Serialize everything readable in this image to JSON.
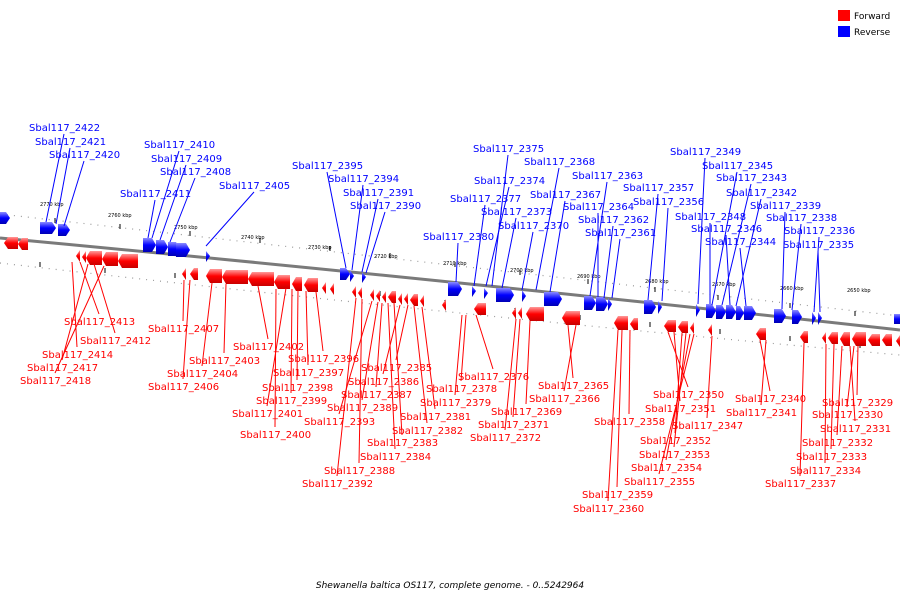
{
  "legend": [
    {
      "label": "Forward",
      "color": "#ff0000"
    },
    {
      "label": "Reverse",
      "color": "#0000ff"
    }
  ],
  "caption": "Shewanella baltica OS117, complete genome. - 0..5242964",
  "ticks": [
    "2770 kbp",
    "2760 kbp",
    "2750 kbp",
    "2740 kbp",
    "2730 kbp",
    "2720 kbp",
    "2710 kbp",
    "2700 kbp",
    "2690 kbp",
    "2680 kbp",
    "2670 kbp",
    "2660 kbp",
    "2650 kbp"
  ],
  "reverse_labels": [
    "Sbal117_2422",
    "Sbal117_2421",
    "Sbal117_2420",
    "Sbal117_2410",
    "Sbal117_2409",
    "Sbal117_2408",
    "Sbal117_2411",
    "Sbal117_2405",
    "Sbal117_2395",
    "Sbal117_2394",
    "Sbal117_2391",
    "Sbal117_2390",
    "Sbal117_2375",
    "Sbal117_2368",
    "Sbal117_2374",
    "Sbal117_2377",
    "Sbal117_2373",
    "Sbal117_2370",
    "Sbal117_2380",
    "Sbal117_2363",
    "Sbal117_2367",
    "Sbal117_2364",
    "Sbal117_2362",
    "Sbal117_2361",
    "Sbal117_2357",
    "Sbal117_2356",
    "Sbal117_2349",
    "Sbal117_2345",
    "Sbal117_2343",
    "Sbal117_2342",
    "Sbal117_2339",
    "Sbal117_2348",
    "Sbal117_2338",
    "Sbal117_2346",
    "Sbal117_2336",
    "Sbal117_2344",
    "Sbal117_2335"
  ],
  "forward_labels": [
    "Sbal117_2413",
    "Sbal117_2412",
    "Sbal117_2414",
    "Sbal117_2417",
    "Sbal117_2418",
    "Sbal117_2407",
    "Sbal117_2402",
    "Sbal117_2403",
    "Sbal117_2404",
    "Sbal117_2406",
    "Sbal117_2396",
    "Sbal117_2397",
    "Sbal117_2398",
    "Sbal117_2399",
    "Sbal117_2401",
    "Sbal117_2400",
    "Sbal117_2385",
    "Sbal117_2386",
    "Sbal117_2387",
    "Sbal117_2389",
    "Sbal117_2393",
    "Sbal117_2381",
    "Sbal117_2382",
    "Sbal117_2383",
    "Sbal117_2384",
    "Sbal117_2388",
    "Sbal117_2392",
    "Sbal117_2376",
    "Sbal117_2378",
    "Sbal117_2379",
    "Sbal117_2369",
    "Sbal117_2371",
    "Sbal117_2372",
    "Sbal117_2365",
    "Sbal117_2366",
    "Sbal117_2358",
    "Sbal117_2359",
    "Sbal117_2360",
    "Sbal117_2350",
    "Sbal117_2351",
    "Sbal117_2347",
    "Sbal117_2352",
    "Sbal117_2353",
    "Sbal117_2354",
    "Sbal117_2355",
    "Sbal117_2340",
    "Sbal117_2341",
    "Sbal117_2329",
    "Sbal117_2330",
    "Sbal117_2331",
    "Sbal117_2332",
    "Sbal117_2333",
    "Sbal117_2334",
    "Sbal117_2337"
  ]
}
